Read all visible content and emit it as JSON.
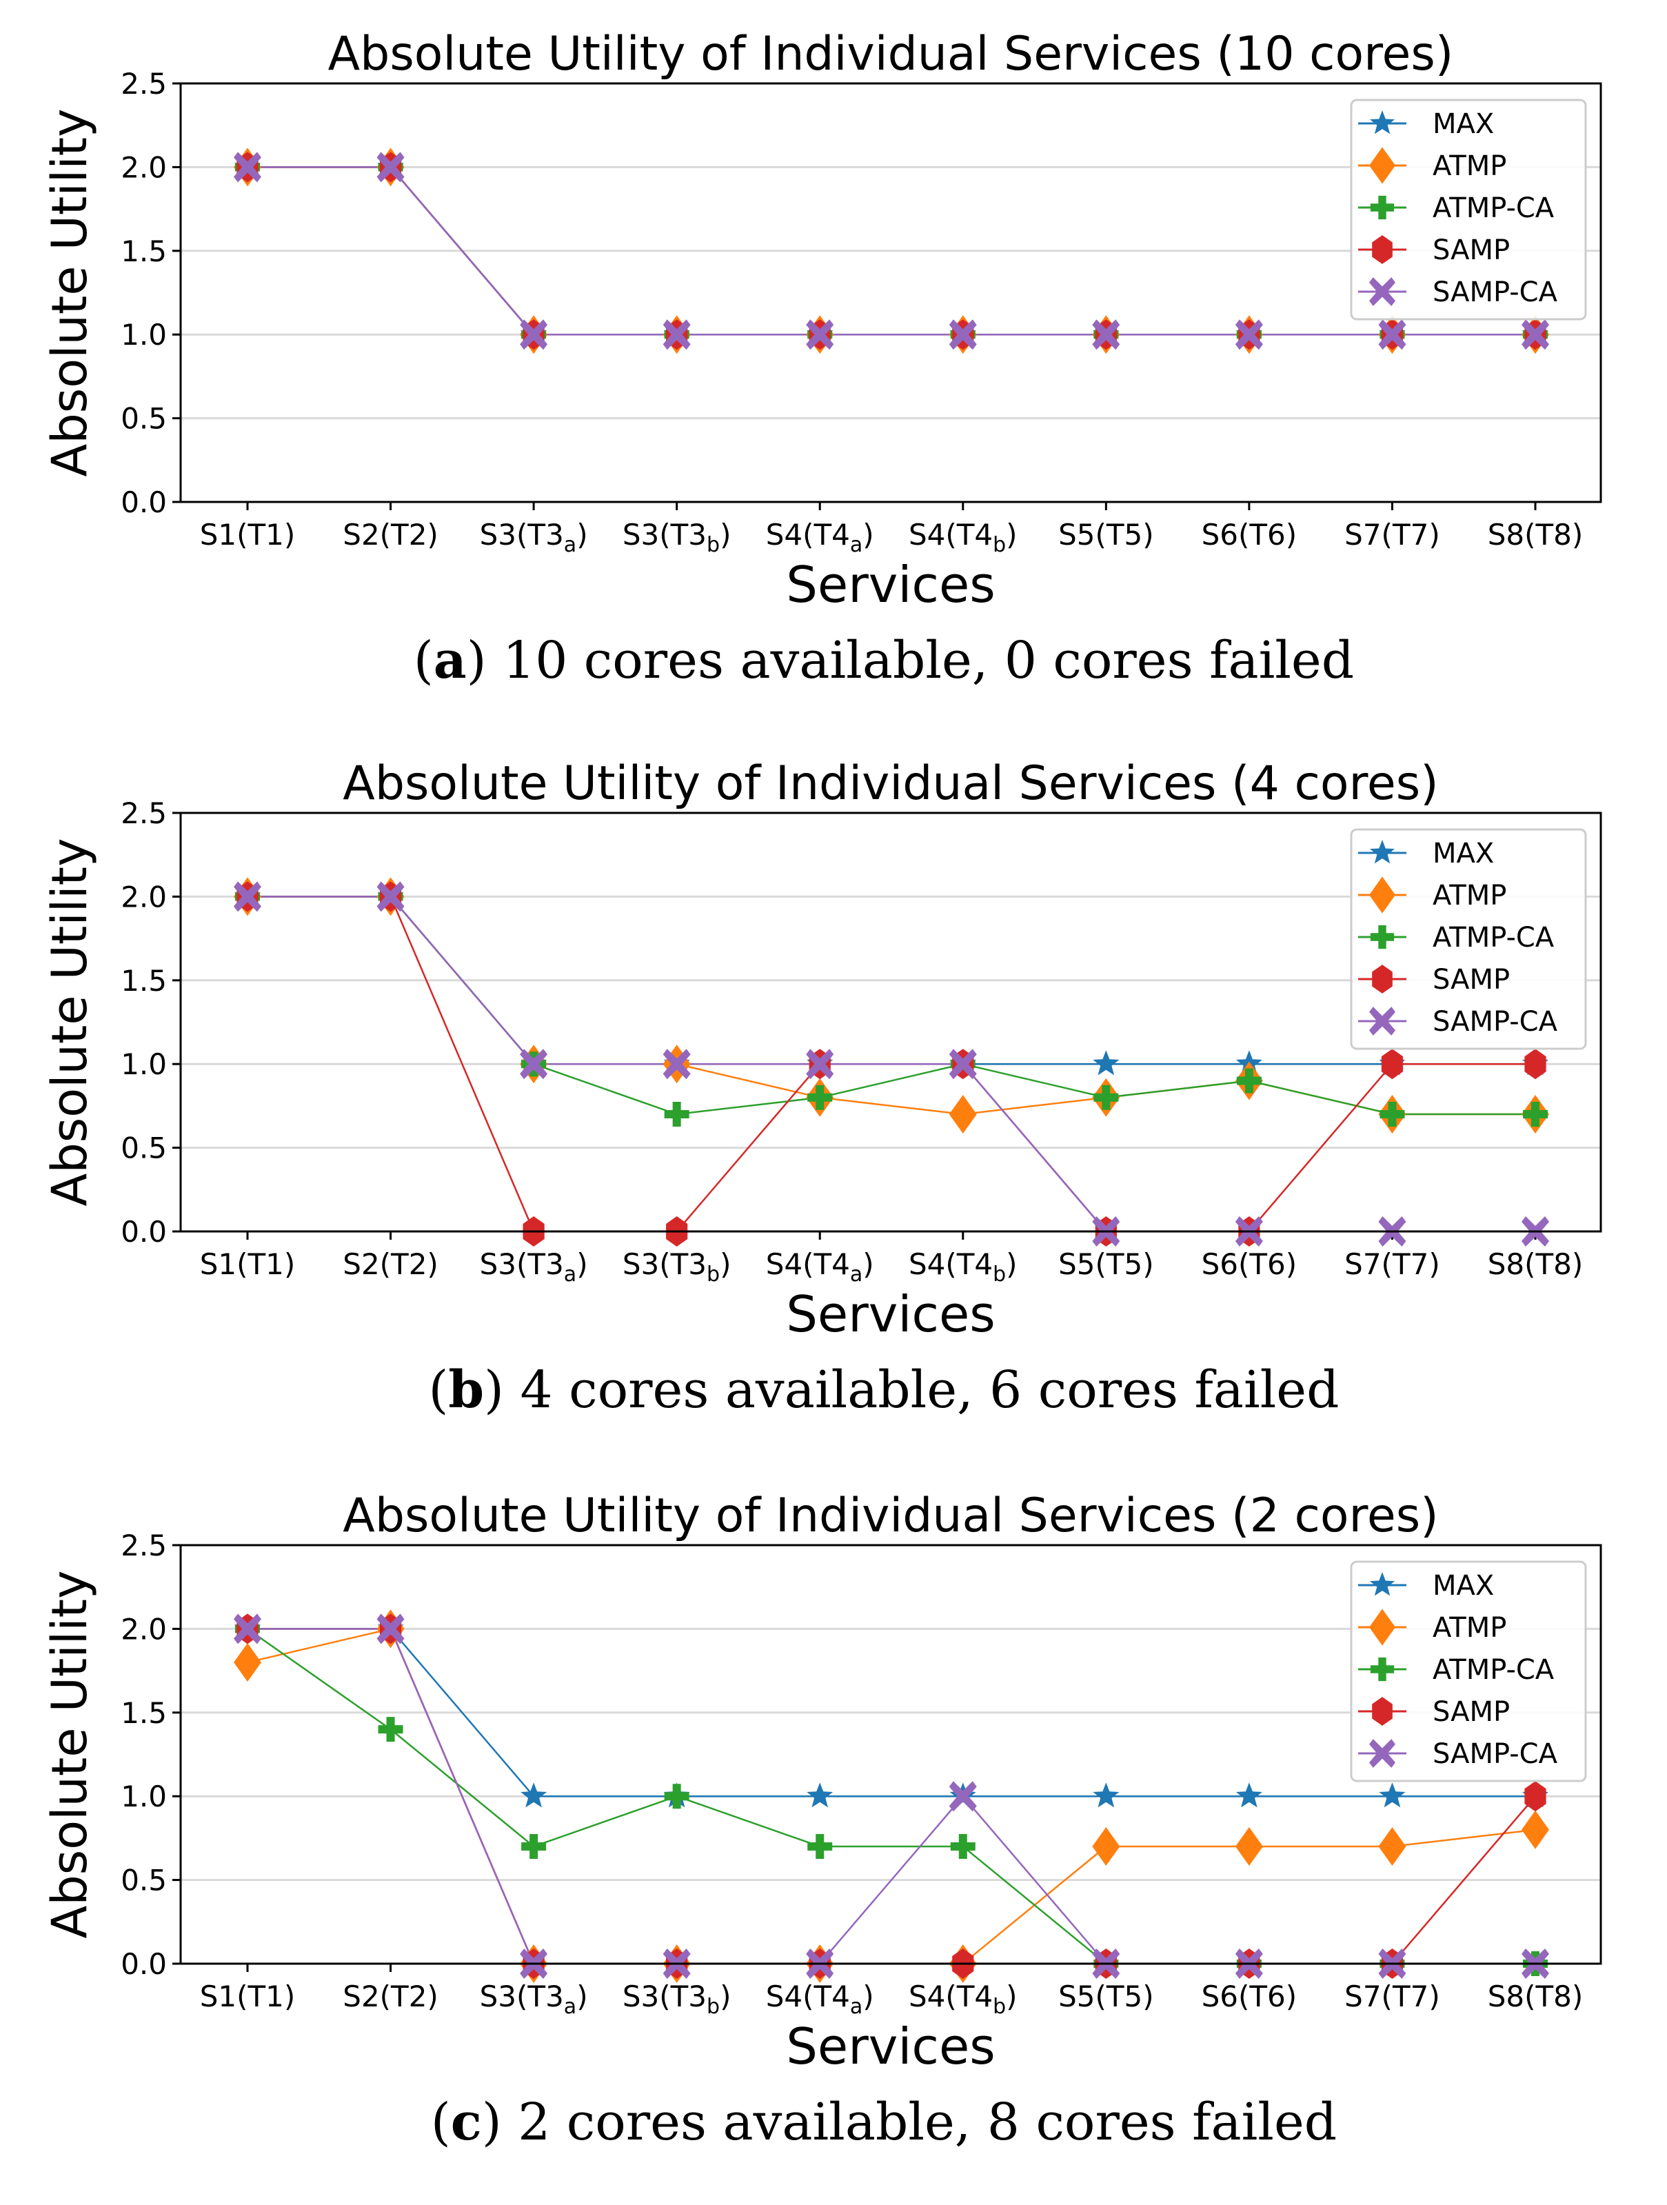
{
  "colors": {
    "MAX": "#1f77b4",
    "ATMP": "#ff7f0e",
    "ATMP-CA": "#2ca02c",
    "SAMP": "#d62728",
    "SAMP-CA": "#9467bd",
    "grid": "#d9d9d9"
  },
  "chart_data": [
    {
      "type": "line",
      "title": "Absolute Utility of Individual Services (10 cores)",
      "xlabel": "Services",
      "ylabel": "Absolute Utility",
      "ylim": [
        0,
        2.5
      ],
      "yticks": [
        "0.0",
        "0.5",
        "1.0",
        "1.5",
        "2.0",
        "2.5"
      ],
      "grid": "horizontal",
      "legend_position": "top-right",
      "categories": [
        {
          "text": "S1(T1)",
          "sub": "",
          "close": ""
        },
        {
          "text": "S2(T2)",
          "sub": "",
          "close": ""
        },
        {
          "text": "S3(T3",
          "sub": "a",
          "close": ")"
        },
        {
          "text": "S3(T3",
          "sub": "b",
          "close": ")"
        },
        {
          "text": "S4(T4",
          "sub": "a",
          "close": ")"
        },
        {
          "text": "S4(T4",
          "sub": "b",
          "close": ")"
        },
        {
          "text": "S5(T5)",
          "sub": "",
          "close": ""
        },
        {
          "text": "S6(T6)",
          "sub": "",
          "close": ""
        },
        {
          "text": "S7(T7)",
          "sub": "",
          "close": ""
        },
        {
          "text": "S8(T8)",
          "sub": "",
          "close": ""
        }
      ],
      "series": [
        {
          "name": "MAX",
          "marker": "star",
          "values": [
            2,
            2,
            1,
            1,
            1,
            1,
            1,
            1,
            1,
            1
          ]
        },
        {
          "name": "ATMP",
          "marker": "diamond",
          "values": [
            2,
            2,
            1,
            1,
            1,
            1,
            1,
            1,
            1,
            1
          ]
        },
        {
          "name": "ATMP-CA",
          "marker": "plus",
          "values": [
            2,
            2,
            1,
            1,
            1,
            1,
            1,
            1,
            1,
            1
          ]
        },
        {
          "name": "SAMP",
          "marker": "hexagon",
          "values": [
            2,
            2,
            1,
            1,
            1,
            1,
            1,
            1,
            1,
            1
          ]
        },
        {
          "name": "SAMP-CA",
          "marker": "x",
          "values": [
            2,
            2,
            1,
            1,
            1,
            1,
            1,
            1,
            1,
            1
          ]
        }
      ],
      "caption": {
        "label": "a",
        "text": "10 cores available, 0 cores failed"
      }
    },
    {
      "type": "line",
      "title": "Absolute Utility of Individual Services (4 cores)",
      "xlabel": "Services",
      "ylabel": "Absolute Utility",
      "ylim": [
        0,
        2.5
      ],
      "yticks": [
        "0.0",
        "0.5",
        "1.0",
        "1.5",
        "2.0",
        "2.5"
      ],
      "grid": "horizontal",
      "legend_position": "top-right",
      "categories": [
        {
          "text": "S1(T1)",
          "sub": "",
          "close": ""
        },
        {
          "text": "S2(T2)",
          "sub": "",
          "close": ""
        },
        {
          "text": "S3(T3",
          "sub": "a",
          "close": ")"
        },
        {
          "text": "S3(T3",
          "sub": "b",
          "close": ")"
        },
        {
          "text": "S4(T4",
          "sub": "a",
          "close": ")"
        },
        {
          "text": "S4(T4",
          "sub": "b",
          "close": ")"
        },
        {
          "text": "S5(T5)",
          "sub": "",
          "close": ""
        },
        {
          "text": "S6(T6)",
          "sub": "",
          "close": ""
        },
        {
          "text": "S7(T7)",
          "sub": "",
          "close": ""
        },
        {
          "text": "S8(T8)",
          "sub": "",
          "close": ""
        }
      ],
      "series": [
        {
          "name": "MAX",
          "marker": "star",
          "values": [
            2,
            2,
            1,
            1,
            1,
            1,
            1,
            1,
            1,
            1
          ]
        },
        {
          "name": "ATMP",
          "marker": "diamond",
          "values": [
            2,
            2,
            1,
            1,
            0.8,
            0.7,
            0.8,
            0.9,
            0.7,
            0.7
          ]
        },
        {
          "name": "ATMP-CA",
          "marker": "plus",
          "values": [
            2,
            2,
            1,
            0.7,
            0.8,
            1,
            0.8,
            0.9,
            0.7,
            0.7
          ]
        },
        {
          "name": "SAMP",
          "marker": "hexagon",
          "values": [
            2,
            2,
            0,
            0,
            1,
            1,
            0,
            0,
            1,
            1
          ]
        },
        {
          "name": "SAMP-CA",
          "marker": "x",
          "values": [
            2,
            2,
            1,
            1,
            1,
            1,
            0,
            0,
            0,
            0
          ]
        }
      ],
      "caption": {
        "label": "b",
        "text": "4 cores available, 6 cores failed"
      }
    },
    {
      "type": "line",
      "title": "Absolute Utility of Individual Services (2 cores)",
      "xlabel": "Services",
      "ylabel": "Absolute Utility",
      "ylim": [
        0,
        2.5
      ],
      "yticks": [
        "0.0",
        "0.5",
        "1.0",
        "1.5",
        "2.0",
        "2.5"
      ],
      "grid": "horizontal",
      "legend_position": "top-right",
      "categories": [
        {
          "text": "S1(T1)",
          "sub": "",
          "close": ""
        },
        {
          "text": "S2(T2)",
          "sub": "",
          "close": ""
        },
        {
          "text": "S3(T3",
          "sub": "a",
          "close": ")"
        },
        {
          "text": "S3(T3",
          "sub": "b",
          "close": ")"
        },
        {
          "text": "S4(T4",
          "sub": "a",
          "close": ")"
        },
        {
          "text": "S4(T4",
          "sub": "b",
          "close": ")"
        },
        {
          "text": "S5(T5)",
          "sub": "",
          "close": ""
        },
        {
          "text": "S6(T6)",
          "sub": "",
          "close": ""
        },
        {
          "text": "S7(T7)",
          "sub": "",
          "close": ""
        },
        {
          "text": "S8(T8)",
          "sub": "",
          "close": ""
        }
      ],
      "series": [
        {
          "name": "MAX",
          "marker": "star",
          "values": [
            2,
            2,
            1,
            1,
            1,
            1,
            1,
            1,
            1,
            1
          ]
        },
        {
          "name": "ATMP",
          "marker": "diamond",
          "values": [
            1.8,
            2,
            0,
            0,
            0,
            0,
            0.7,
            0.7,
            0.7,
            0.8
          ]
        },
        {
          "name": "ATMP-CA",
          "marker": "plus",
          "values": [
            2,
            1.4,
            0.7,
            1,
            0.7,
            0.7,
            0,
            0,
            0,
            0
          ]
        },
        {
          "name": "SAMP",
          "marker": "hexagon",
          "values": [
            2,
            2,
            0,
            0,
            0,
            0,
            0,
            0,
            0,
            1
          ]
        },
        {
          "name": "SAMP-CA",
          "marker": "x",
          "values": [
            2,
            2,
            0,
            0,
            0,
            1,
            0,
            0,
            0,
            0
          ]
        }
      ],
      "caption": {
        "label": "c",
        "text": "2 cores available, 8 cores failed"
      }
    }
  ]
}
